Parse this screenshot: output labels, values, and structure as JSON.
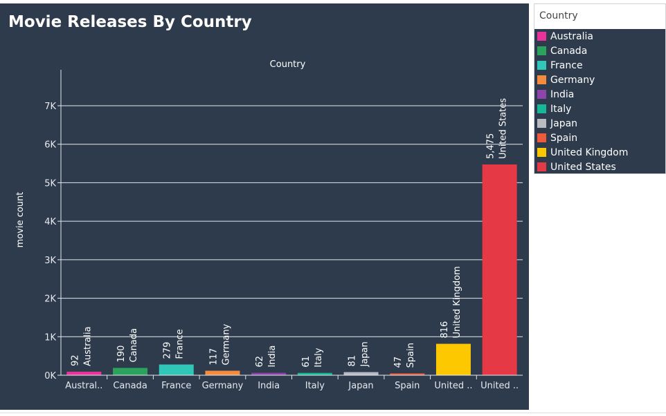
{
  "chart_data": {
    "type": "bar",
    "title": "Movie Releases By Country",
    "column_header": "Country",
    "ylabel": "movie count",
    "ylim": [
      0,
      7800
    ],
    "yticks": [
      0,
      1000,
      2000,
      3000,
      4000,
      5000,
      6000,
      7000
    ],
    "ytick_labels": [
      "0K",
      "1K",
      "2K",
      "3K",
      "4K",
      "5K",
      "6K",
      "7K"
    ],
    "grid": true,
    "categories": [
      "Australia",
      "Canada",
      "France",
      "Germany",
      "India",
      "Italy",
      "Japan",
      "Spain",
      "United Kingdom",
      "United States"
    ],
    "xtick_labels": [
      "Austral..",
      "Canada",
      "France",
      "Germany",
      "India",
      "Italy",
      "Japan",
      "Spain",
      "United ..",
      "United .."
    ],
    "values": [
      92,
      190,
      279,
      117,
      62,
      61,
      81,
      47,
      816,
      5475
    ],
    "value_labels": [
      "92",
      "190",
      "279",
      "117",
      "62",
      "61",
      "81",
      "47",
      "816",
      "5,475"
    ],
    "colors": [
      "#e8339b",
      "#2ca25f",
      "#30c6b8",
      "#f58b3c",
      "#8e44ad",
      "#17b897",
      "#b8bcc2",
      "#ef5a3a",
      "#fdc800",
      "#e53a45"
    ],
    "legend": {
      "title": "Country",
      "position": "right",
      "items": [
        "Australia",
        "Canada",
        "France",
        "Germany",
        "India",
        "Italy",
        "Japan",
        "Spain",
        "United Kingdom",
        "United States"
      ]
    }
  }
}
